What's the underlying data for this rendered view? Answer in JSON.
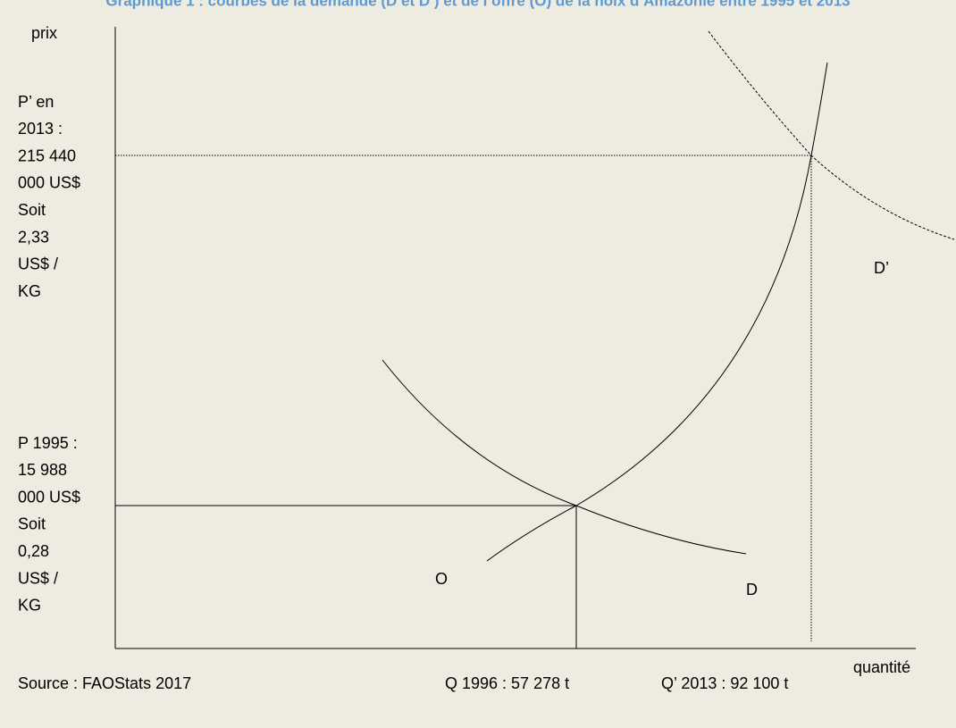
{
  "title": "Graphique 1 : courbes de la demande (D et D’) et de l’offre (O) de la noix d’Amazonie entre 1995 et 2013",
  "y_axis_label": "prix",
  "x_axis_label": "quantité",
  "price_2013": [
    "P’ en",
    "2013 :",
    "215 440",
    "000 US$",
    "Soit",
    "2,33",
    "US$ /",
    "KG"
  ],
  "price_1995": [
    "P 1995 :",
    "15 988",
    "000 US$",
    "Soit",
    "0,28",
    "US$ /",
    "KG"
  ],
  "curve_labels": {
    "supply": "O",
    "demand": "D",
    "demand_new": "D’"
  },
  "source": "Source : FAOStats 2017",
  "quantity_1996": "Q 1996 : 57 278 t",
  "quantity_2013": "Q’ 2013 : 92 100 t"
}
